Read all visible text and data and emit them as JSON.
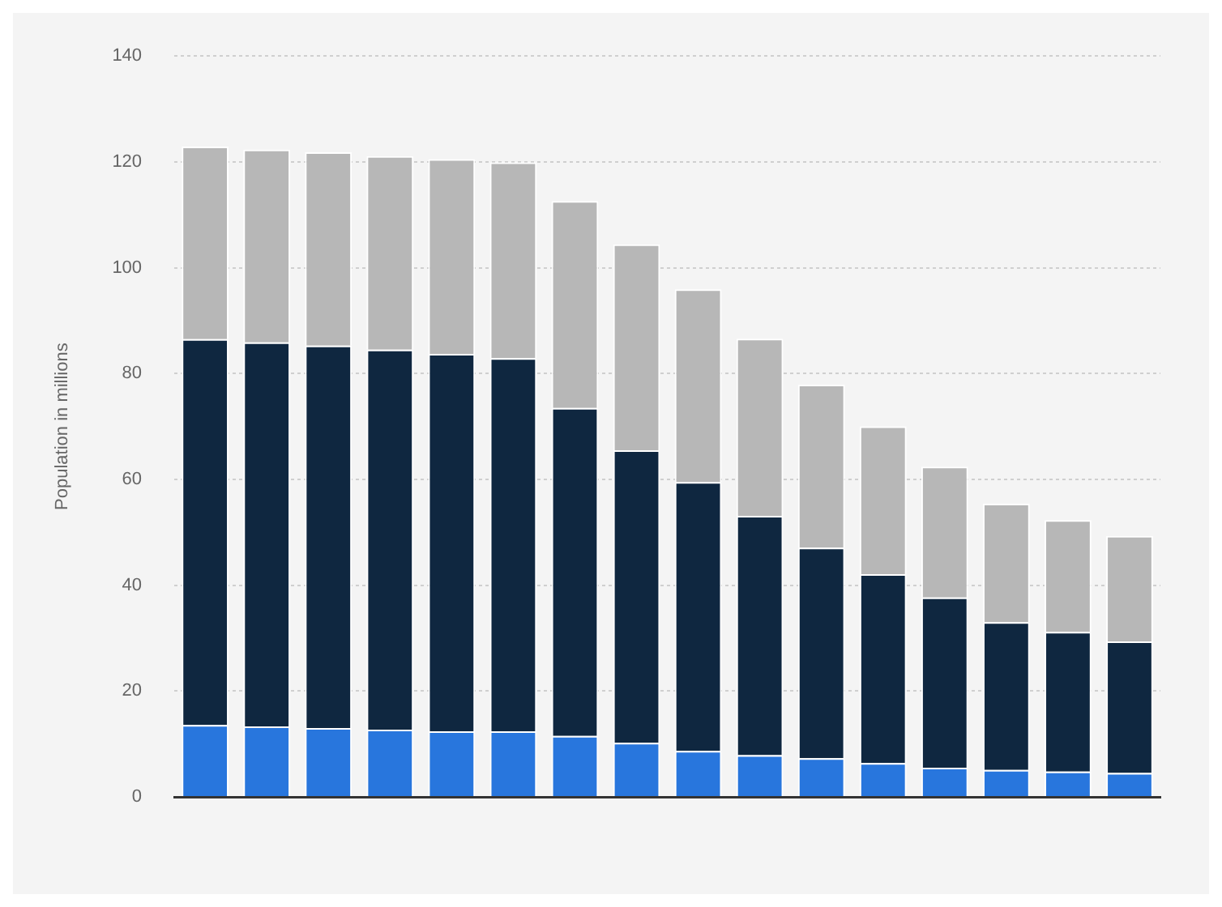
{
  "chart_data": {
    "type": "bar",
    "ylabel": "Population in millions",
    "stacked": true,
    "categories": [
      null,
      null,
      null,
      null,
      null,
      null,
      null,
      null,
      null,
      null,
      null,
      null,
      null,
      null,
      null,
      null
    ],
    "series": [
      {
        "color": "#2876dd",
        "values": [
          13.6,
          13.3,
          13.0,
          12.7,
          12.4,
          12.4,
          11.5,
          10.2,
          8.7,
          7.9,
          7.3,
          6.4,
          5.5,
          5.1,
          4.8,
          4.5
        ]
      },
      {
        "color": "#0f2740",
        "values": [
          72.9,
          72.6,
          72.3,
          71.8,
          71.3,
          70.5,
          62.0,
          55.3,
          50.8,
          45.2,
          39.8,
          35.7,
          32.2,
          27.9,
          26.4,
          24.9
        ]
      },
      {
        "color": "#b7b7b7",
        "values": [
          36.4,
          36.4,
          36.5,
          36.6,
          36.8,
          37.0,
          39.1,
          38.9,
          36.4,
          33.5,
          30.8,
          27.9,
          24.7,
          22.4,
          21.1,
          19.9
        ]
      }
    ],
    "ylim": [
      0,
      140
    ],
    "yticks": [
      0,
      20,
      40,
      60,
      80,
      100,
      120,
      140
    ],
    "grid": "y",
    "legend": false,
    "tick_labels": "y"
  }
}
